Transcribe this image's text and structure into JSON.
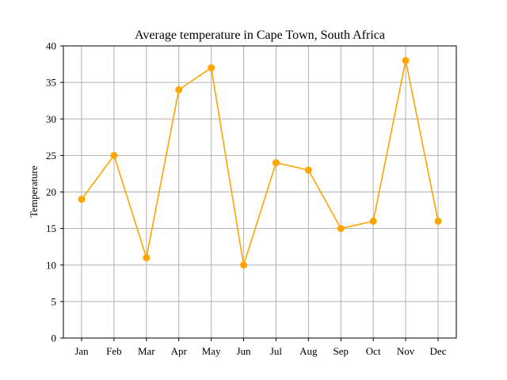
{
  "chart_data": {
    "type": "line",
    "title": "Average temperature in Cape Town, South Africa",
    "xlabel": "",
    "ylabel": "Temperature",
    "categories": [
      "Jan",
      "Feb",
      "Mar",
      "Apr",
      "May",
      "Jun",
      "Jul",
      "Aug",
      "Sep",
      "Oct",
      "Nov",
      "Dec"
    ],
    "values": [
      19,
      25,
      11,
      34,
      37,
      10,
      24,
      23,
      15,
      16,
      38,
      16
    ],
    "ylim": [
      0,
      40
    ],
    "yticks": [
      "0",
      "5",
      "10",
      "15",
      "20",
      "25",
      "30",
      "35",
      "40"
    ],
    "grid": true,
    "legend": "none",
    "color": "#FFA500",
    "marker": "circle"
  }
}
